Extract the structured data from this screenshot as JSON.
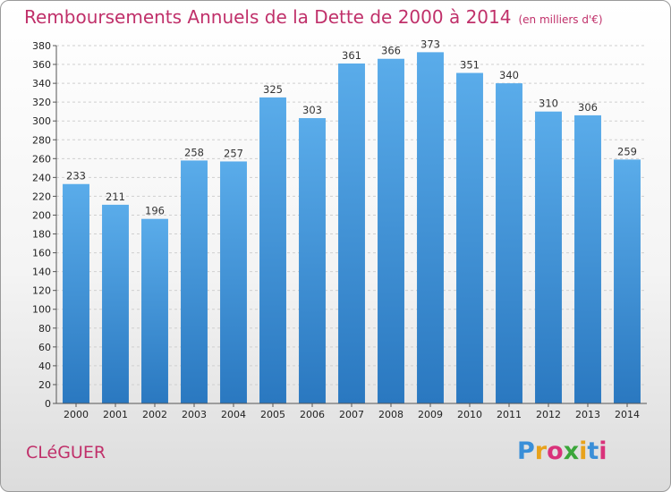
{
  "header": {
    "title": "Remboursements Annuels de la Dette de 2000 à 2014",
    "unit": "(en milliers d'€)"
  },
  "footer": {
    "commune": "CLéGUER",
    "logo_letters": [
      "P",
      "r",
      "o",
      "x",
      "i",
      "t",
      "i"
    ],
    "logo_colors": [
      "#3a8fd8",
      "#e8a21c",
      "#d9327a",
      "#3aa63a",
      "#e8a21c",
      "#3a8fd8",
      "#d9327a"
    ]
  },
  "colors": {
    "accent": "#c0306a",
    "bar_top": "#5aacea",
    "bar_bottom": "#2a78c0"
  },
  "chart_data": {
    "type": "bar",
    "title": "Remboursements Annuels de la Dette de 2000 à 2014",
    "subtitle": "(en milliers d'€)",
    "categories": [
      "2000",
      "2001",
      "2002",
      "2003",
      "2004",
      "2005",
      "2006",
      "2007",
      "2008",
      "2009",
      "2010",
      "2011",
      "2012",
      "2013",
      "2014"
    ],
    "values": [
      233,
      211,
      196,
      258,
      257,
      325,
      303,
      361,
      366,
      373,
      351,
      340,
      310,
      306,
      259
    ],
    "ylim": [
      0,
      380
    ],
    "yticks": [
      0,
      20,
      40,
      60,
      80,
      100,
      120,
      140,
      160,
      180,
      200,
      220,
      240,
      260,
      280,
      300,
      320,
      340,
      360,
      380
    ],
    "grid": true,
    "legend": "none"
  }
}
